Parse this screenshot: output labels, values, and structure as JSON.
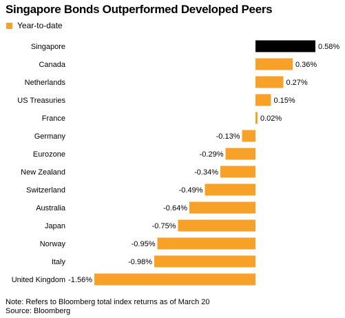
{
  "colors": {
    "positive_bar": "#f7a128",
    "highlight_bar": "#000000"
  },
  "legend": {
    "label": "Year-to-date"
  },
  "footer": {
    "note": "Note: Refers to Bloomberg total index returns as of March 20",
    "source": "Source: Bloomberg"
  },
  "chart_data": {
    "type": "bar",
    "orientation": "horizontal",
    "title": "Singapore Bonds Outperformed Developed Peers",
    "series": [
      {
        "name": "Year-to-date",
        "values": [
          0.58,
          0.36,
          0.27,
          0.15,
          0.02,
          -0.13,
          -0.29,
          -0.34,
          -0.49,
          -0.64,
          -0.75,
          -0.95,
          -0.98,
          -1.56
        ]
      }
    ],
    "categories": [
      "Singapore",
      "Canada",
      "Netherlands",
      "US Treasuries",
      "France",
      "Germany",
      "Eurozone",
      "New Zealand",
      "Switzerland",
      "Australia",
      "Japan",
      "Norway",
      "Italy",
      "United Kingdom"
    ],
    "value_labels": [
      "0.58%",
      "0.36%",
      "0.27%",
      "0.15%",
      "0.02%",
      "-0.13%",
      "-0.29%",
      "-0.34%",
      "-0.49%",
      "-0.64%",
      "-0.75%",
      "-0.95%",
      "-0.98%",
      "-1.56%"
    ],
    "highlight_category": "Singapore",
    "xlim": [
      -1.56,
      0.58
    ],
    "grid": false,
    "legend_position": "top-left"
  }
}
